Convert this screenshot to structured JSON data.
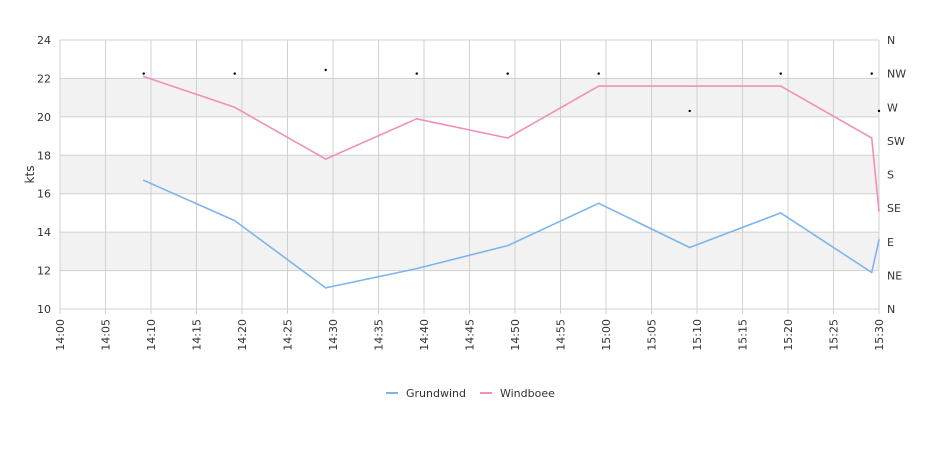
{
  "chart_data": {
    "type": "line",
    "ylabel": "kts",
    "ylim": [
      10,
      24
    ],
    "y_ticks": [
      "10",
      "12",
      "14",
      "16",
      "18",
      "20",
      "22",
      "24"
    ],
    "x_ticks": [
      "14:00",
      "14:05",
      "14:10",
      "14:15",
      "14:20",
      "14:25",
      "14:30",
      "14:35",
      "14:40",
      "14:45",
      "14:50",
      "14:55",
      "15:00",
      "15:05",
      "15:10",
      "15:15",
      "15:20",
      "15:25",
      "15:30"
    ],
    "x_range_minutes": [
      0,
      90
    ],
    "right_axis": {
      "labels": [
        "N",
        "NE",
        "E",
        "SE",
        "S",
        "SW",
        "W",
        "NW",
        "N"
      ],
      "range_deg": [
        0,
        360
      ]
    },
    "series": [
      {
        "name": "Grundwind",
        "color": "#7cb5ec",
        "x_minutes": [
          9.2,
          19.2,
          29.2,
          39.2,
          49.2,
          59.2,
          69.2,
          79.2,
          89.2,
          90
        ],
        "values": [
          16.7,
          14.6,
          11.1,
          12.1,
          13.3,
          15.5,
          13.2,
          15.0,
          11.9,
          13.6
        ]
      },
      {
        "name": "Windboee",
        "color": "#f28fba",
        "x_minutes": [
          9.2,
          19.2,
          29.2,
          39.2,
          49.2,
          59.2,
          69.2,
          79.2,
          89.2,
          90
        ],
        "values": [
          22.1,
          20.5,
          17.8,
          19.9,
          18.9,
          21.6,
          21.6,
          21.6,
          18.9,
          15.1
        ]
      }
    ],
    "direction_points": {
      "x_minutes": [
        9.2,
        19.2,
        29.2,
        39.2,
        49.2,
        59.2,
        69.2,
        79.2,
        89.2,
        90
      ],
      "degrees": [
        315,
        315,
        320,
        315,
        315,
        315,
        265,
        315,
        315,
        265
      ]
    },
    "alternate_bands": true,
    "grid": true,
    "legend_position": "bottom-center",
    "colors": {
      "band": "#f2f2f2",
      "grid": "#d0d0d0",
      "direction_point": "#000000"
    }
  }
}
